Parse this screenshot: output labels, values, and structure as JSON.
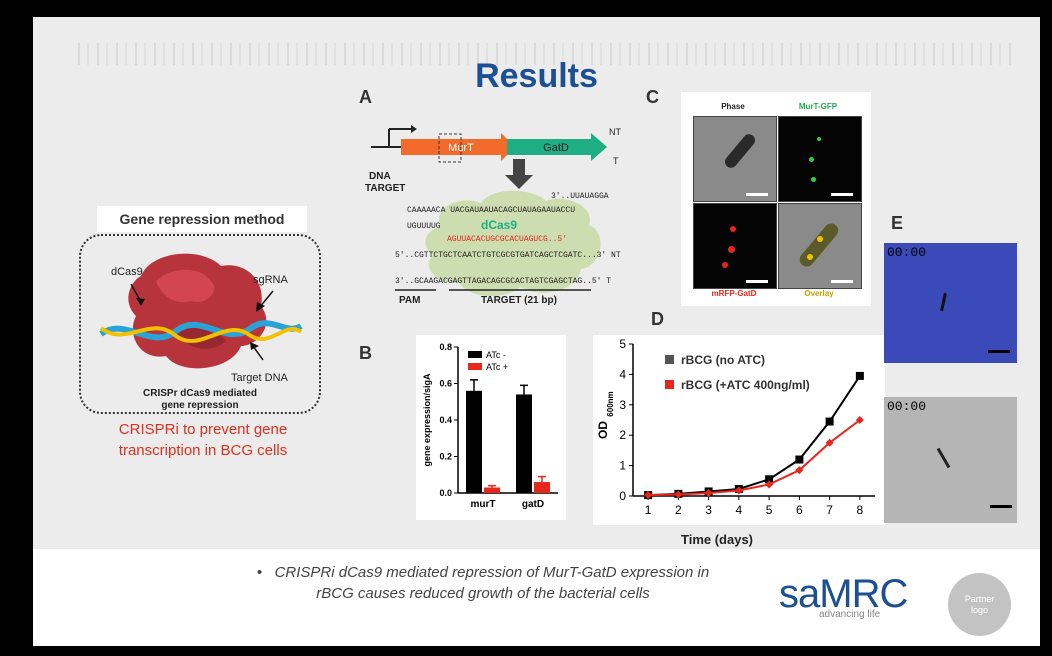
{
  "slide": {
    "title": "Results",
    "panel_letters": {
      "a": "A",
      "b": "B",
      "c": "C",
      "d": "D",
      "e": "E"
    }
  },
  "method": {
    "title": "Gene repression method",
    "labels": {
      "dcas9": "dCas9",
      "sgrna": "sgRNA",
      "target_dna": "Target DNA"
    },
    "caption_line1": "CRISPr dCas9 mediated",
    "caption_line2": "gene repression",
    "red_line1": "CRISPRi to prevent gene",
    "red_line2": "transcription in BCG cells"
  },
  "panel_a": {
    "gene1": "MurT",
    "gene2": "GatD",
    "nt": "NT",
    "t": "T",
    "dna_target_line1": "DNA",
    "dna_target_line2": "TARGET",
    "dcas9": "dCas9",
    "seq_top_right": "3'..UUAUAGGA",
    "seq_loop": "CAAAAACA UACGAUAAUACAGCUAUAGAAUACCU",
    "seq_u": "UGUUUUG",
    "seq_guide": "AGUUACACUGCGCACUAGUCG..5'",
    "seq_guide_prefix": "A",
    "seq_nt": "5'..CGTTCTGCTCAATCTGTCGCGTGATCAGCTCGATC...3' NT",
    "seq_t": "3'..GCAAGACGAGTTAGACAGCGCACTAGTCGAGCTAG..5' T",
    "pam": "PAM",
    "target": "TARGET (21 bp)"
  },
  "panel_b": {
    "ylabel": "gene expression/sigA",
    "legend1": "ATc -",
    "legend2": "ATc +",
    "categories": [
      "murT",
      "gatD"
    ],
    "ticks": [
      "0.0",
      "0.2",
      "0.4",
      "0.6",
      "0.8"
    ]
  },
  "panel_c": {
    "labels": {
      "phase": "Phase",
      "gfp": "MurT-GFP",
      "rfp": "mRFP-GatD",
      "overlay": "Overlay"
    }
  },
  "panel_d": {
    "ylabel_main": "OD",
    "ylabel_sub": "600nm",
    "xlabel": "Time (days)",
    "legend1": "rBCG (no ATC)",
    "legend2": "rBCG (+ATC 400ng/ml)",
    "xticks": [
      "1",
      "2",
      "3",
      "4",
      "5",
      "6",
      "7",
      "8"
    ],
    "yticks": [
      "0",
      "1",
      "2",
      "3",
      "4",
      "5"
    ]
  },
  "panel_e": {
    "time1": "00:00",
    "time2": "00:00"
  },
  "footer": {
    "bullet_line1": "CRISPRi dCas9 mediated repression of MurT-GatD expression in",
    "bullet_line2": "rBCG causes reduced growth of the bacterial cells",
    "logo_text": "saMRC",
    "logo_tagline": "advancing life",
    "partner_line1": "Partner",
    "partner_line2": "logo"
  },
  "colors": {
    "title": "#1c4f93",
    "red": "#e0301e",
    "green_gene": "#1fae83",
    "orange_gene": "#f26b2b"
  },
  "chart_data": [
    {
      "type": "bar",
      "categories": [
        "murT",
        "gatD"
      ],
      "series": [
        {
          "name": "ATc -",
          "values": [
            0.56,
            0.54
          ],
          "errors": [
            0.06,
            0.05
          ],
          "color": "#000000"
        },
        {
          "name": "ATc +",
          "values": [
            0.03,
            0.06
          ],
          "errors": [
            0.01,
            0.03
          ],
          "color": "#e8261c"
        }
      ],
      "ylabel": "gene expression/sigA",
      "ylim": [
        0,
        0.8
      ]
    },
    {
      "type": "line",
      "x": [
        1,
        2,
        3,
        4,
        5,
        6,
        7,
        8
      ],
      "series": [
        {
          "name": "rBCG (no ATC)",
          "values": [
            0.03,
            0.07,
            0.15,
            0.23,
            0.55,
            1.2,
            2.45,
            3.95
          ],
          "color": "#000000"
        },
        {
          "name": "rBCG (+ATC 400ng/ml)",
          "values": [
            0.03,
            0.05,
            0.1,
            0.18,
            0.38,
            0.85,
            1.75,
            2.5
          ],
          "color": "#e8261c"
        }
      ],
      "xlabel": "Time (days)",
      "ylabel": "OD600nm",
      "xlim": [
        0.5,
        8.5
      ],
      "ylim": [
        0,
        5
      ]
    }
  ]
}
